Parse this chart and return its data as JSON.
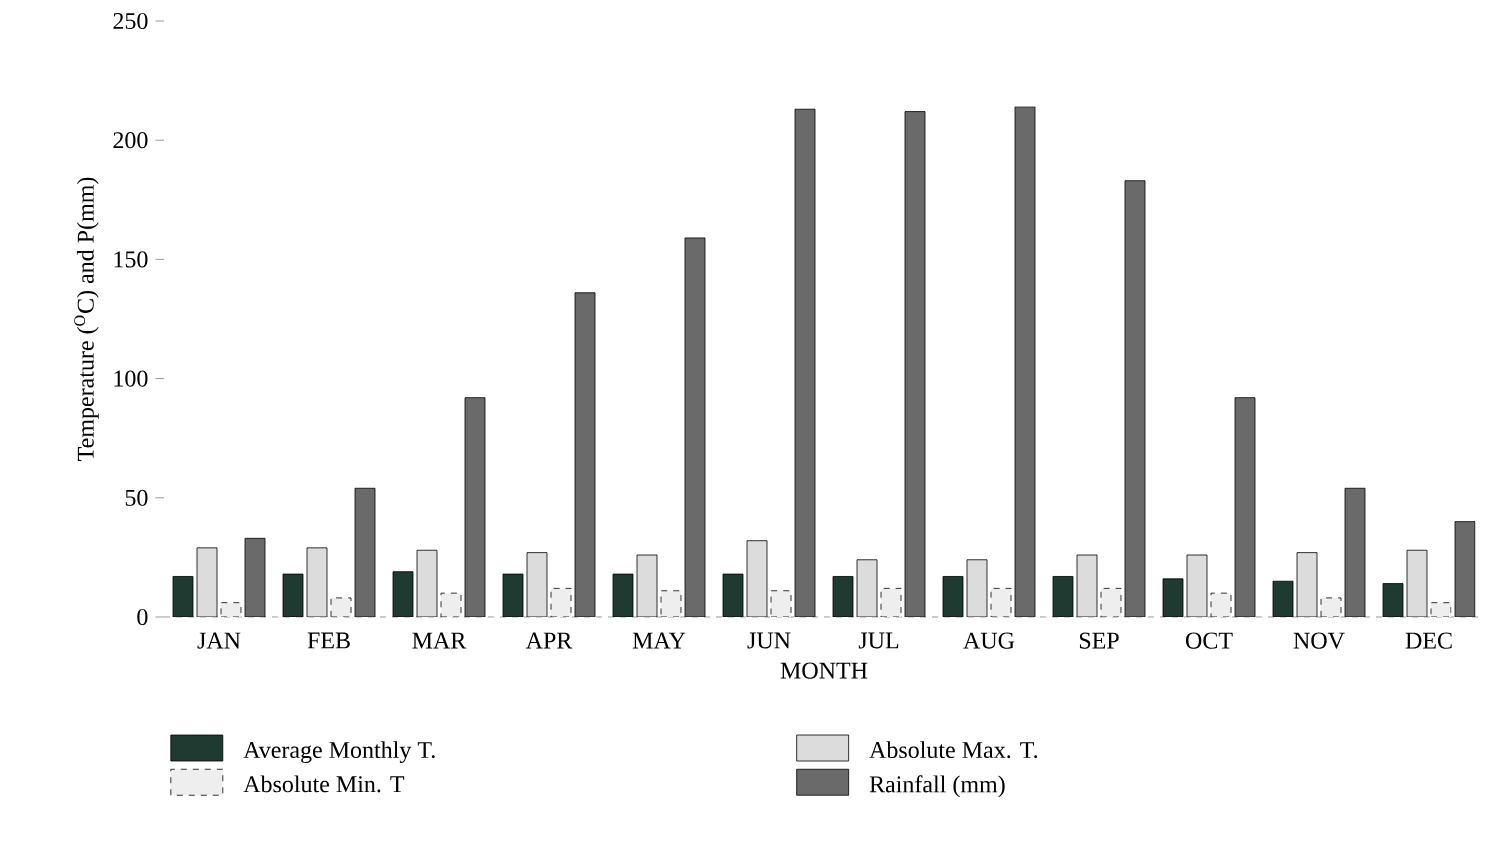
{
  "chart_data": {
    "type": "bar",
    "xlabel": "MONTH",
    "ylabel": "Temperature ($^{O}$C) and P(mm)",
    "categories": [
      "JAN",
      "FEB",
      "MAR",
      "APR",
      "MAY",
      "JUN",
      "JUL",
      "AUG",
      "SEP",
      "OCT",
      "NOV",
      "DEC"
    ],
    "series": [
      {
        "name": "Average Monthly T.",
        "color": "#1f3a30",
        "values": [
          17,
          18,
          19,
          18,
          18,
          18,
          17,
          17,
          17,
          16,
          15,
          14
        ]
      },
      {
        "name": "Absolute Max. T.",
        "color": "#dcdcdc",
        "values": [
          29,
          29,
          28,
          27,
          26,
          32,
          24,
          24,
          26,
          26,
          27,
          28
        ]
      },
      {
        "name": "Absolute Min. T",
        "color": "#eeeeee",
        "line_style": "dashed",
        "values": [
          6,
          8,
          10,
          12,
          11,
          11,
          12,
          12,
          12,
          10,
          8,
          6
        ]
      },
      {
        "name": "Rainfall (mm)",
        "color": "#6a6a6a",
        "values": [
          33,
          54,
          92,
          136,
          159,
          213,
          212,
          214,
          183,
          92,
          54,
          40
        ]
      }
    ],
    "ylim": [
      0,
      250
    ],
    "yticks": [
      0,
      50,
      100,
      150,
      200,
      250
    ],
    "grid": false,
    "legend": "bottom"
  }
}
